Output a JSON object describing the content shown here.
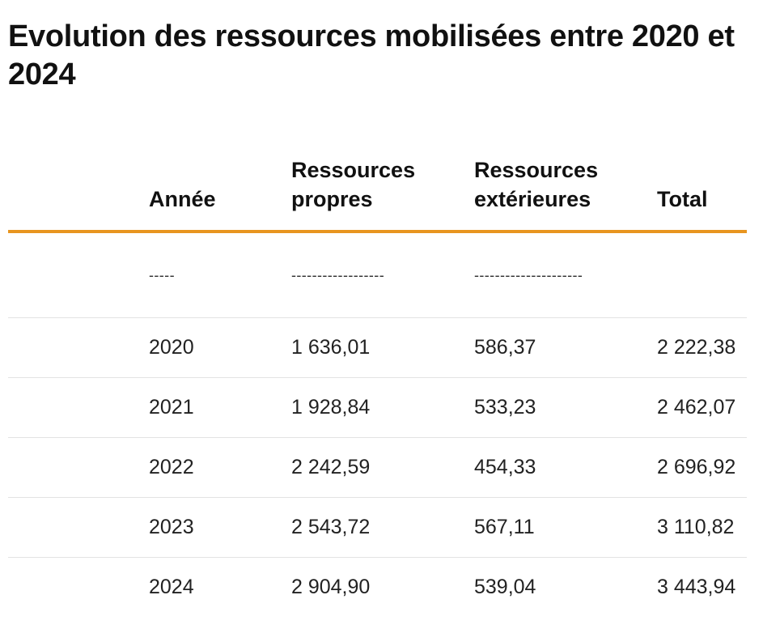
{
  "title": "Evolution des ressources mobilisées entre 2020 et 2024",
  "table": {
    "headers": [
      "Année",
      "Ressources propres",
      "Ressources extérieures",
      "Total"
    ],
    "separator": [
      "-----",
      "------------------",
      "---------------------",
      ""
    ],
    "rows": [
      [
        "2020",
        "1 636,01",
        "586,37",
        "2 222,38"
      ],
      [
        "2021",
        "1 928,84",
        "533,23",
        "2 462,07"
      ],
      [
        "2022",
        "2 242,59",
        "454,33",
        "2 696,92"
      ],
      [
        "2023",
        "2 543,72",
        "567,11",
        "3 110,82"
      ],
      [
        "2024",
        "2 904,90",
        "539,04",
        "3 443,94"
      ]
    ]
  },
  "colors": {
    "accent_rule": "#e8951f",
    "row_divider": "#e3e3e3"
  }
}
